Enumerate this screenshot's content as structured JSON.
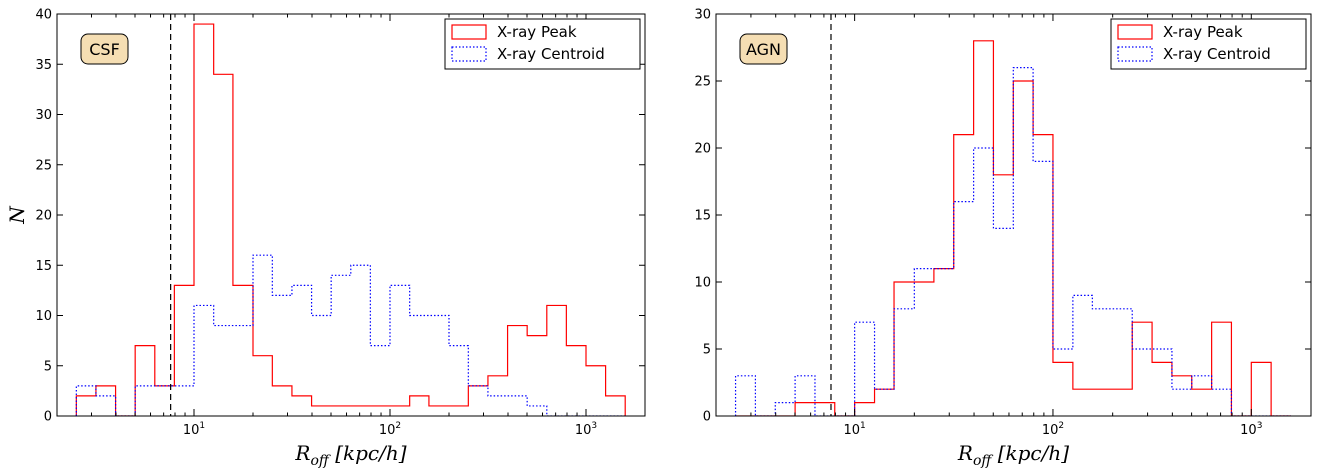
{
  "chart_data": [
    {
      "type": "histogram",
      "badge": "CSF",
      "xlabel": "R_off [kpc/h]",
      "ylabel": "N",
      "xscale": "log",
      "xlim": [
        2.0,
        2000
      ],
      "ylim": [
        0,
        40
      ],
      "yticks": [
        0,
        5,
        10,
        15,
        20,
        25,
        30,
        35,
        40
      ],
      "xticks": [
        10,
        100,
        1000
      ],
      "xtick_labels": [
        [
          "10",
          "1"
        ],
        [
          "10",
          "2"
        ],
        [
          "10",
          "3"
        ]
      ],
      "vline": 7.6,
      "legend": {
        "position": "upper-right"
      },
      "bin_edges": [
        2.51,
        3.16,
        3.98,
        5.01,
        6.31,
        7.94,
        10.0,
        12.6,
        15.8,
        20.0,
        25.1,
        31.6,
        39.8,
        50.1,
        63.1,
        79.4,
        100,
        126,
        158,
        200,
        251,
        316,
        398,
        501,
        631,
        794,
        1000,
        1259,
        1585
      ],
      "series": [
        {
          "name": "X-ray Peak",
          "color": "#ff0000",
          "style": "solid",
          "counts": [
            2,
            3,
            0,
            7,
            3,
            13,
            39,
            34,
            13,
            6,
            3,
            2,
            1,
            1,
            1,
            1,
            1,
            2,
            1,
            1,
            3,
            4,
            9,
            8,
            11,
            7,
            5,
            2
          ]
        },
        {
          "name": "X-ray Centroid",
          "color": "#0000ff",
          "style": "dotted",
          "counts": [
            3,
            2,
            0,
            3,
            3,
            3,
            11,
            9,
            9,
            16,
            12,
            13,
            10,
            14,
            15,
            7,
            13,
            10,
            10,
            7,
            3,
            2,
            2,
            1,
            0,
            0,
            0,
            0
          ]
        }
      ]
    },
    {
      "type": "histogram",
      "badge": "AGN",
      "xlabel": "R_off [kpc/h]",
      "ylabel": "",
      "xscale": "log",
      "xlim": [
        2.0,
        2000
      ],
      "ylim": [
        0,
        30
      ],
      "yticks": [
        0,
        5,
        10,
        15,
        20,
        25,
        30
      ],
      "xticks": [
        10,
        100,
        1000
      ],
      "xtick_labels": [
        [
          "10",
          "1"
        ],
        [
          "10",
          "2"
        ],
        [
          "10",
          "3"
        ]
      ],
      "vline": 7.6,
      "legend": {
        "position": "upper-right"
      },
      "bin_edges": [
        2.51,
        3.16,
        3.98,
        5.01,
        6.31,
        7.94,
        10.0,
        12.6,
        15.8,
        20.0,
        25.1,
        31.6,
        39.8,
        50.1,
        63.1,
        79.4,
        100,
        126,
        158,
        200,
        251,
        316,
        398,
        501,
        631,
        794,
        1000,
        1259,
        1585
      ],
      "series": [
        {
          "name": "X-ray Peak",
          "color": "#ff0000",
          "style": "solid",
          "counts": [
            0,
            0,
            0,
            1,
            1,
            0,
            1,
            2,
            10,
            10,
            11,
            21,
            28,
            18,
            25,
            21,
            4,
            2,
            2,
            2,
            7,
            4,
            3,
            2,
            7,
            0,
            4,
            0
          ]
        },
        {
          "name": "X-ray Centroid",
          "color": "#0000ff",
          "style": "dotted",
          "counts": [
            3,
            0,
            1,
            3,
            0,
            0,
            7,
            2,
            8,
            11,
            11,
            16,
            20,
            14,
            26,
            19,
            5,
            9,
            8,
            8,
            5,
            5,
            2,
            3,
            2,
            0,
            0,
            0
          ]
        }
      ]
    }
  ]
}
